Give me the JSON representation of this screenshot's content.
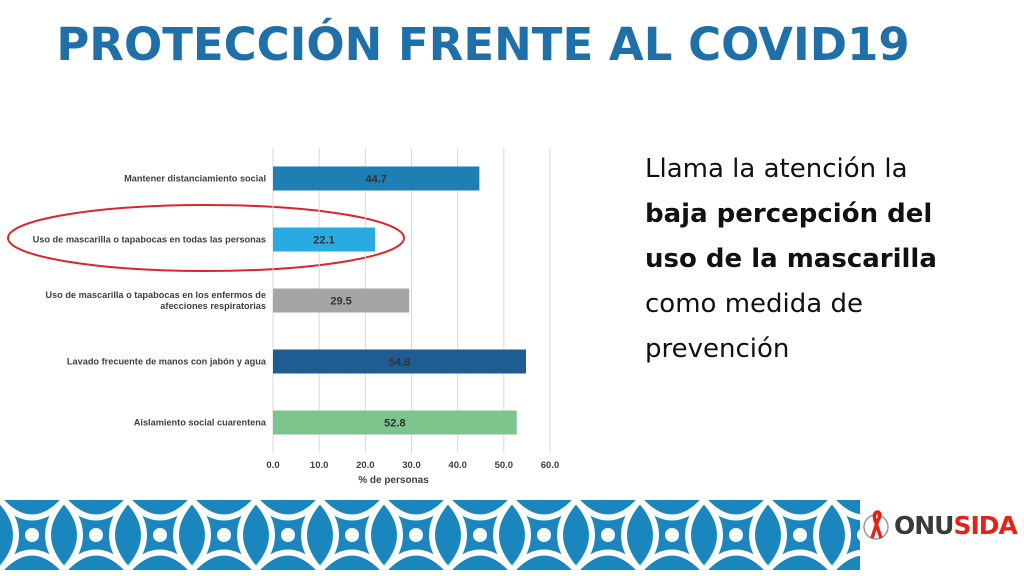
{
  "title": "PROTECCIÓN FRENTE AL COVID19",
  "chart_data": {
    "type": "bar",
    "orientation": "horizontal",
    "categories": [
      "Mantener distanciamiento social",
      "Uso de mascarilla o tapabocas en todas las personas",
      "Uso de mascarilla o tapabocas en los enfermos de afecciones respiratorias",
      "Lavado frecuente de manos con jabón y agua",
      "Aislamiento social cuarentena"
    ],
    "values": [
      44.7,
      22.1,
      29.5,
      54.8,
      52.8
    ],
    "colors": [
      "#1d7fb3",
      "#29abe2",
      "#a5a5a5",
      "#1f5c93",
      "#7cc68d"
    ],
    "xlabel": "% de personas",
    "xlim": [
      0,
      60
    ],
    "xticks": [
      {
        "value": 0,
        "label": "0.0"
      },
      {
        "value": 10,
        "label": "10.0"
      },
      {
        "value": 20,
        "label": "20.0"
      },
      {
        "value": 30,
        "label": "30.0"
      },
      {
        "value": 40,
        "label": "40.0"
      },
      {
        "value": 50,
        "label": "50.0"
      },
      {
        "value": 60,
        "label": "60.0"
      }
    ],
    "grid": true
  },
  "side_text": {
    "intro": "Llama la atención la",
    "emphasis": "baja percepción del uso de la mascarilla",
    "outro": "como medida de prevención"
  },
  "logo": {
    "part1": "ONU",
    "part2": "SIDA"
  }
}
